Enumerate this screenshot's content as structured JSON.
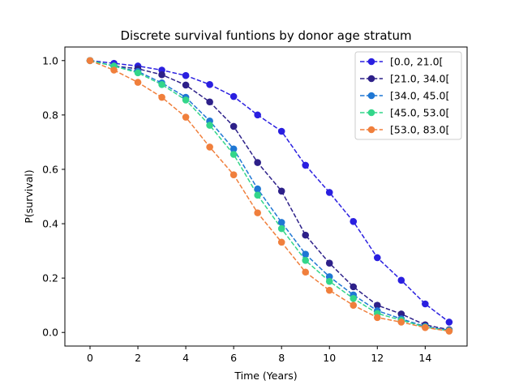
{
  "chart_data": {
    "type": "line",
    "title": "Discrete survival funtions by donor age stratum",
    "xlabel": "Time (Years)",
    "ylabel": "P(survival)",
    "xlim": [
      -1.05,
      15.75
    ],
    "ylim": [
      -0.05,
      1.05
    ],
    "xticks": [
      "0",
      "2",
      "4",
      "6",
      "8",
      "10",
      "12",
      "14"
    ],
    "xtick_values": [
      0,
      2,
      4,
      6,
      8,
      10,
      12,
      14
    ],
    "yticks": [
      "0.0",
      "0.2",
      "0.4",
      "0.6",
      "0.8",
      "1.0"
    ],
    "ytick_values": [
      0.0,
      0.2,
      0.4,
      0.6,
      0.8,
      1.0
    ],
    "grid": false,
    "legend_position": "top-right",
    "x": [
      0,
      1,
      2,
      3,
      4,
      5,
      6,
      7,
      8,
      9,
      10,
      11,
      12,
      13,
      14,
      15
    ],
    "series": [
      {
        "name": "[0.0, 21.0[",
        "color": "#2a1fe0",
        "values": [
          1.0,
          0.99,
          0.98,
          0.965,
          0.945,
          0.912,
          0.868,
          0.8,
          0.74,
          0.615,
          0.515,
          0.408,
          0.275,
          0.192,
          0.105,
          0.038
        ]
      },
      {
        "name": "[21.0, 34.0[",
        "color": "#2d2089",
        "values": [
          1.0,
          0.98,
          0.97,
          0.948,
          0.91,
          0.848,
          0.758,
          0.625,
          0.52,
          0.358,
          0.255,
          0.168,
          0.1,
          0.068,
          0.028,
          0.01
        ]
      },
      {
        "name": "[34.0, 45.0[",
        "color": "#1f77d4",
        "values": [
          1.0,
          0.98,
          0.96,
          0.918,
          0.865,
          0.778,
          0.675,
          0.528,
          0.405,
          0.288,
          0.205,
          0.138,
          0.08,
          0.05,
          0.022,
          0.008
        ]
      },
      {
        "name": "[45.0, 53.0[",
        "color": "#33d68a",
        "values": [
          1.0,
          0.98,
          0.955,
          0.912,
          0.855,
          0.762,
          0.655,
          0.505,
          0.382,
          0.265,
          0.188,
          0.125,
          0.07,
          0.045,
          0.02,
          0.006
        ]
      },
      {
        "name": "[53.0, 83.0[",
        "color": "#f07f3c",
        "values": [
          1.0,
          0.965,
          0.92,
          0.865,
          0.792,
          0.682,
          0.58,
          0.44,
          0.332,
          0.222,
          0.155,
          0.1,
          0.055,
          0.038,
          0.018,
          0.005
        ]
      }
    ]
  }
}
